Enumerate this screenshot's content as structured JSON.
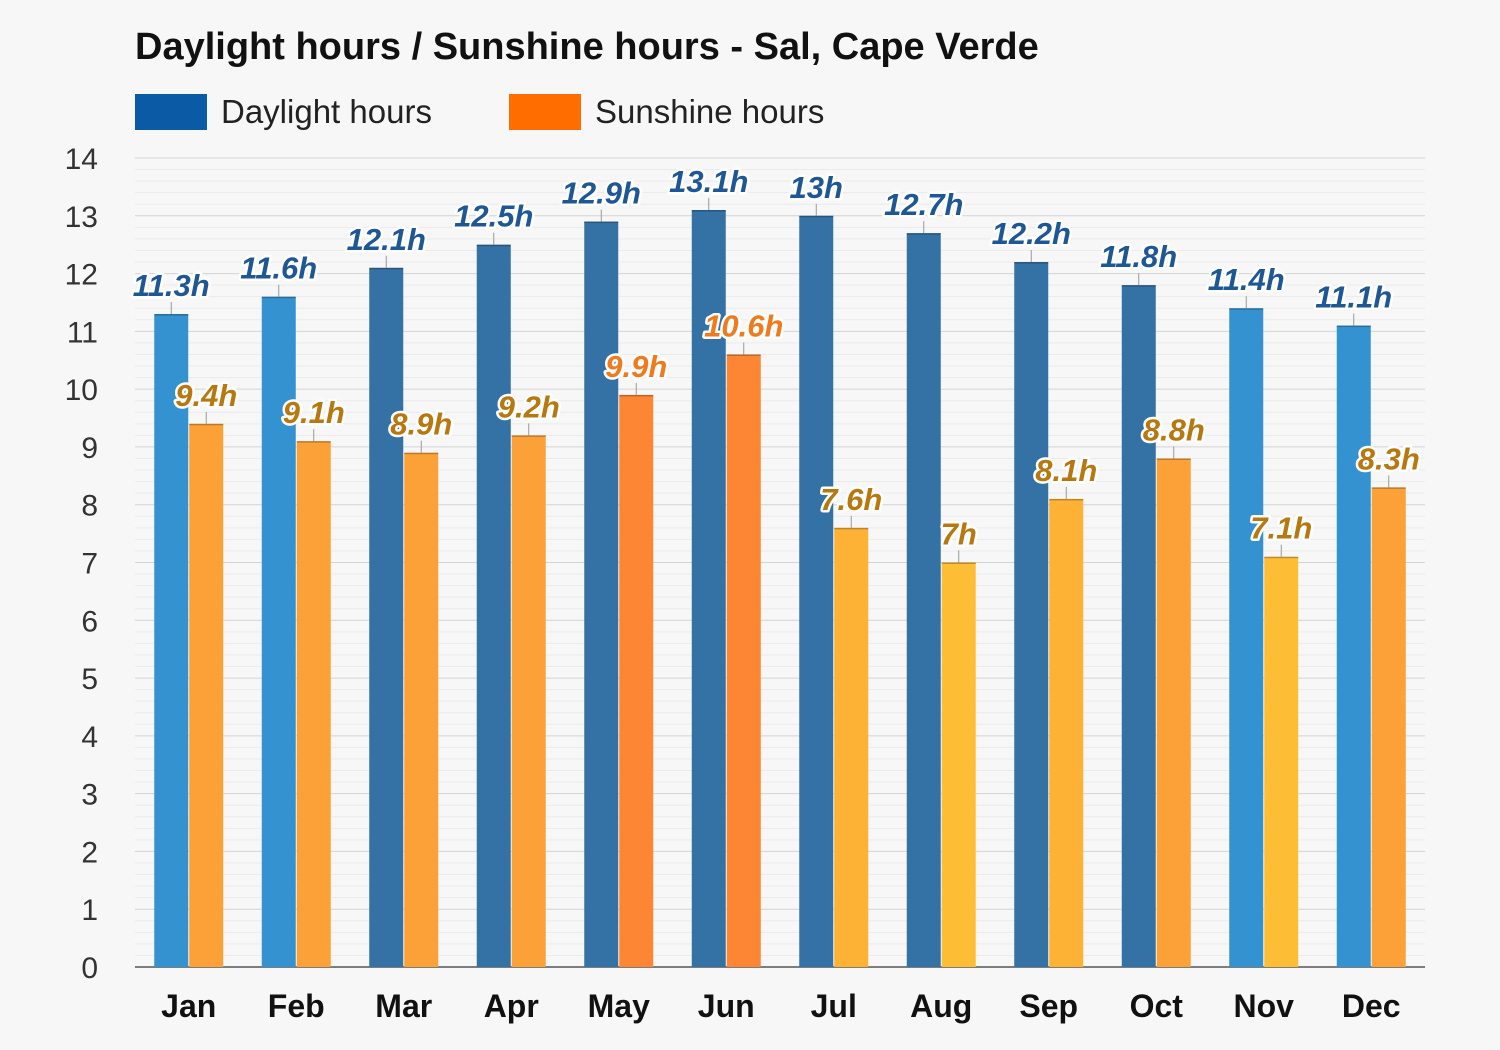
{
  "chart_data": {
    "type": "bar",
    "title": "Daylight hours / Sunshine hours - Sal, Cape Verde",
    "xlabel": "",
    "ylabel": "",
    "ylim": [
      0,
      14
    ],
    "yticks": [
      0,
      1,
      2,
      3,
      4,
      5,
      6,
      7,
      8,
      9,
      10,
      11,
      12,
      13,
      14
    ],
    "grid": true,
    "legend_position": "top-left",
    "categories": [
      "Jan",
      "Feb",
      "Mar",
      "Apr",
      "May",
      "Jun",
      "Jul",
      "Aug",
      "Sep",
      "Oct",
      "Nov",
      "Dec"
    ],
    "series": [
      {
        "name": "Daylight hours",
        "color": "#0b5aa5",
        "values": [
          11.3,
          11.6,
          12.1,
          12.5,
          12.9,
          13.1,
          13,
          12.7,
          12.2,
          11.8,
          11.4,
          11.1
        ],
        "labels": [
          "11.3h",
          "11.6h",
          "12.1h",
          "12.5h",
          "12.9h",
          "13.1h",
          "13h",
          "12.7h",
          "12.2h",
          "11.8h",
          "11.4h",
          "11.1h"
        ],
        "bar_colors": [
          "#3592d1",
          "#3592d1",
          "#3472a6",
          "#3472a6",
          "#3472a6",
          "#3472a6",
          "#3472a6",
          "#3472a6",
          "#3472a6",
          "#3472a6",
          "#3592d1",
          "#3592d1"
        ]
      },
      {
        "name": "Sunshine hours",
        "color": "#ff6d00",
        "values": [
          9.4,
          9.1,
          8.9,
          9.2,
          9.9,
          10.6,
          7.6,
          7,
          8.1,
          8.8,
          7.1,
          8.3
        ],
        "labels": [
          "9.4h",
          "9.1h",
          "8.9h",
          "9.2h",
          "9.9h",
          "10.6h",
          "7.6h",
          "7h",
          "8.1h",
          "8.8h",
          "7.1h",
          "8.3h"
        ],
        "bar_colors": [
          "#fca138",
          "#fca138",
          "#fca138",
          "#fca138",
          "#fd8635",
          "#fd8635",
          "#fdb236",
          "#fdbd35",
          "#fdb236",
          "#fca138",
          "#fdbd35",
          "#fca138"
        ],
        "label_colors": [
          "#b8780f",
          "#b8780f",
          "#b8780f",
          "#b8780f",
          "#f07a1c",
          "#f07a1c",
          "#b8780f",
          "#b8780f",
          "#b8780f",
          "#b8780f",
          "#b8780f",
          "#b8780f"
        ]
      }
    ]
  }
}
